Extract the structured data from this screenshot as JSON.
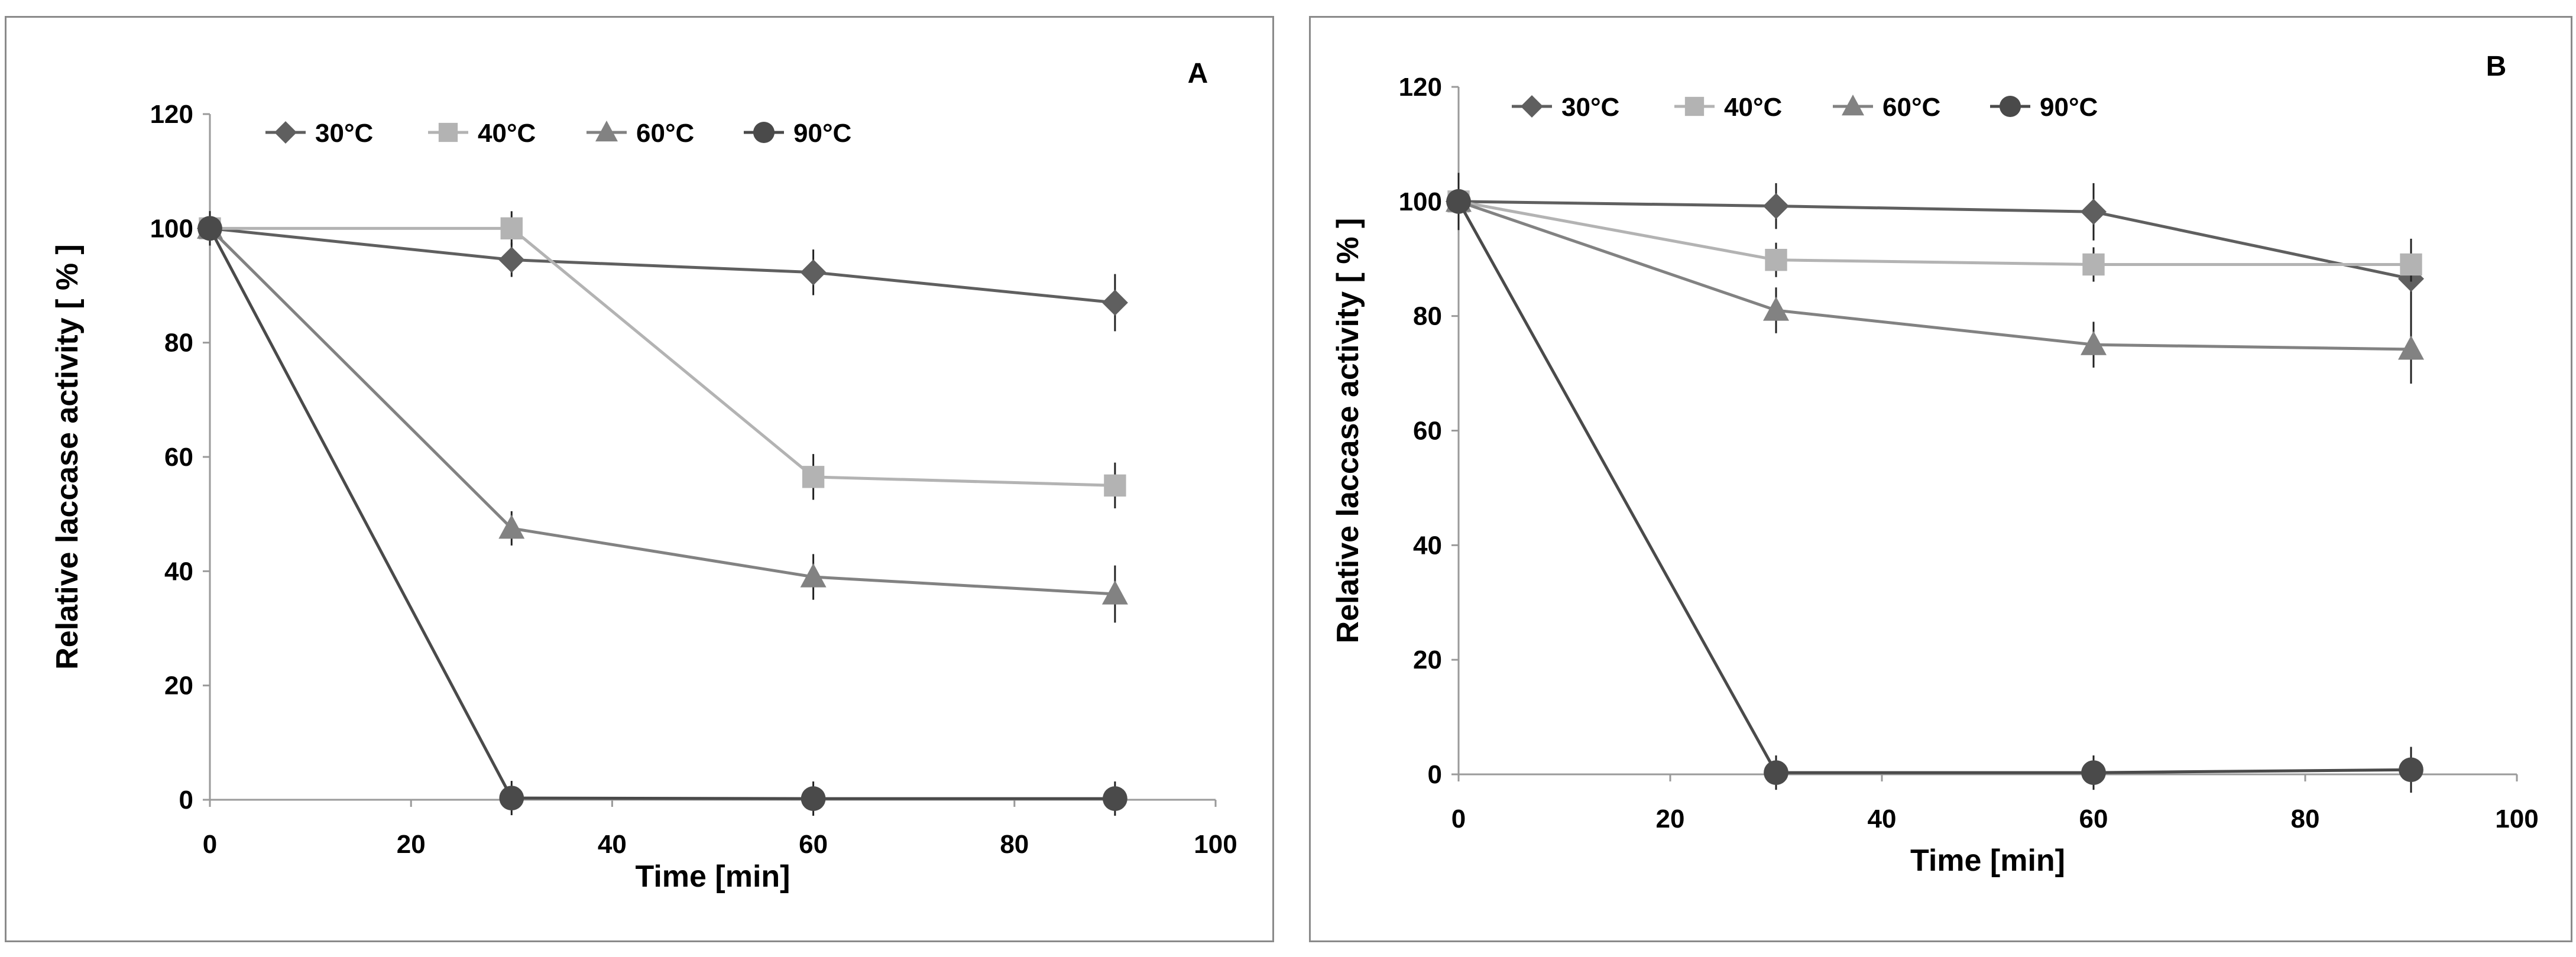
{
  "chart_data": [
    {
      "type": "line",
      "panel_label": "A",
      "xlabel": "Time [min]",
      "ylabel": "Relative laccase activity [ % ]",
      "xlim": [
        0,
        100
      ],
      "ylim": [
        0,
        120
      ],
      "xticks": [
        0,
        20,
        40,
        60,
        80,
        100
      ],
      "yticks": [
        0,
        20,
        40,
        60,
        80,
        100,
        120
      ],
      "legend_position": "top",
      "series": [
        {
          "name": "30°C",
          "marker": "diamond",
          "color": "#5f5f5f",
          "x": [
            0,
            30,
            60,
            90
          ],
          "values": [
            100,
            94.5,
            92.3,
            87
          ],
          "errors": [
            3,
            3,
            4,
            5
          ]
        },
        {
          "name": "40°C",
          "marker": "square",
          "color": "#b3b3b3",
          "x": [
            0,
            30,
            60,
            90
          ],
          "values": [
            100,
            100,
            56.5,
            55
          ],
          "errors": [
            3,
            3,
            4,
            4
          ]
        },
        {
          "name": "60°C",
          "marker": "triangle",
          "color": "#828282",
          "x": [
            0,
            30,
            60,
            90
          ],
          "values": [
            100,
            47.5,
            39,
            36
          ],
          "errors": [
            3,
            3,
            4,
            5
          ]
        },
        {
          "name": "90°C",
          "marker": "circle",
          "color": "#4a4a4a",
          "x": [
            0,
            30,
            60,
            90
          ],
          "values": [
            100,
            0.3,
            0.2,
            0.2
          ],
          "errors": [
            3,
            3,
            3,
            3
          ]
        }
      ]
    },
    {
      "type": "line",
      "panel_label": "B",
      "xlabel": "Time [min]",
      "ylabel": "Relative laccase activity [ % ]",
      "xlim": [
        0,
        100
      ],
      "ylim": [
        0,
        120
      ],
      "xticks": [
        0,
        20,
        40,
        60,
        80,
        100
      ],
      "yticks": [
        0,
        20,
        40,
        60,
        80,
        100,
        120
      ],
      "legend_position": "top",
      "series": [
        {
          "name": "30°C",
          "marker": "diamond",
          "color": "#5f5f5f",
          "x": [
            0,
            30,
            60,
            90
          ],
          "values": [
            100,
            99.2,
            98.2,
            86.5
          ],
          "errors": [
            5,
            4,
            5,
            7
          ]
        },
        {
          "name": "40°C",
          "marker": "square",
          "color": "#b3b3b3",
          "x": [
            0,
            30,
            60,
            90
          ],
          "values": [
            100,
            89.8,
            89,
            89
          ],
          "errors": [
            4,
            3,
            3,
            3
          ]
        },
        {
          "name": "60°C",
          "marker": "triangle",
          "color": "#828282",
          "x": [
            0,
            30,
            60,
            90
          ],
          "values": [
            100,
            81,
            75,
            74.2
          ],
          "errors": [
            3,
            4,
            4,
            6
          ]
        },
        {
          "name": "90°C",
          "marker": "circle",
          "color": "#4a4a4a",
          "x": [
            0,
            30,
            60,
            90
          ],
          "values": [
            100,
            0.3,
            0.3,
            0.8
          ],
          "errors": [
            3,
            3,
            3,
            4
          ]
        }
      ]
    }
  ]
}
